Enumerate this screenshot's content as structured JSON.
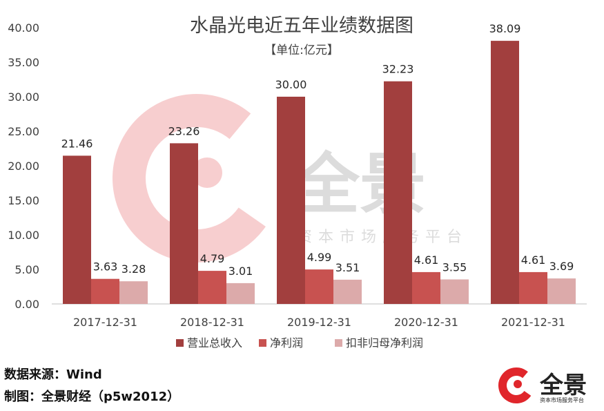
{
  "chart_data": {
    "type": "bar",
    "title": "水晶光电近五年业绩数据图",
    "subtitle": "【单位:亿元】",
    "categories": [
      "2017-12-31",
      "2018-12-31",
      "2019-12-31",
      "2020-12-31",
      "2021-12-31"
    ],
    "series": [
      {
        "name": "营业总收入",
        "values": [
          21.46,
          23.26,
          30.0,
          32.23,
          38.09
        ],
        "labels": [
          "21.46",
          "23.26",
          "30.00",
          "32.23",
          "38.09"
        ],
        "color": "#a23f3e"
      },
      {
        "name": "净利润",
        "values": [
          3.63,
          4.79,
          4.99,
          4.61,
          4.61
        ],
        "labels": [
          "3.63",
          "4.79",
          "4.99",
          "4.61",
          "4.61"
        ],
        "color": "#c85250"
      },
      {
        "name": "扣非归母净利润",
        "values": [
          3.28,
          3.01,
          3.51,
          3.55,
          3.69
        ],
        "labels": [
          "3.28",
          "3.01",
          "3.51",
          "3.55",
          "3.69"
        ],
        "color": "#dcaaaa"
      }
    ],
    "ylim": [
      0,
      40
    ],
    "yticks": [
      "0.00",
      "5.00",
      "10.00",
      "15.00",
      "20.00",
      "25.00",
      "30.00",
      "35.00",
      "40.00"
    ],
    "legend_position": "bottom",
    "grid": false
  },
  "watermark": {
    "name": "全景",
    "tagline": "资本市场服务平台"
  },
  "footer": {
    "source": "数据来源：Wind",
    "maker": "制图：全景财经（p5w2012）"
  },
  "logo": {
    "name": "全景",
    "tagline": "资本市场服务平台",
    "color": "#e0262b"
  }
}
